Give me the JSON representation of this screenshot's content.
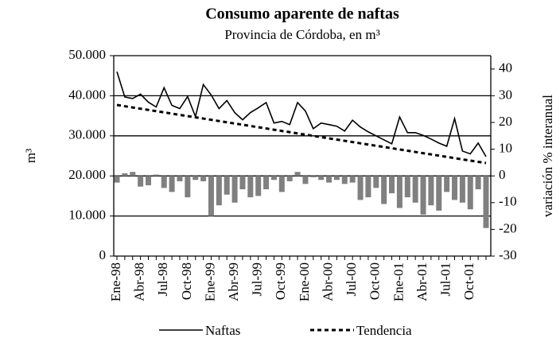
{
  "chart_data": {
    "type": "line-bar",
    "title": "Consumo aparente de naftas",
    "subtitle": "Provincia de Córdoba, en m³",
    "y_label": "m³",
    "y2_label": "variación % interanual",
    "categories": [
      "Ene-98",
      null,
      null,
      "Abr-98",
      null,
      null,
      "Jul-98",
      null,
      null,
      "Oct-98",
      null,
      null,
      "Ene-99",
      null,
      null,
      "Abr-99",
      null,
      null,
      "Jul-99",
      null,
      null,
      "Oct-99",
      null,
      null,
      "Ene-00",
      null,
      null,
      "Abr-00",
      null,
      null,
      "Jul-00",
      null,
      null,
      "Oct-00",
      null,
      null,
      "Ene-01",
      null,
      null,
      "Abr-01",
      null,
      null,
      "Jul-01",
      null,
      null,
      "Oct-01",
      null,
      null
    ],
    "series": [
      {
        "name": "Naftas",
        "kind": "line",
        "color": "#000000",
        "values": [
          46000,
          39700,
          39300,
          40400,
          38400,
          37200,
          42000,
          37600,
          36800,
          39800,
          34800,
          42800,
          40200,
          36800,
          38800,
          35800,
          34000,
          35800,
          37000,
          38300,
          33200,
          33600,
          32800,
          38300,
          36200,
          31800,
          33200,
          32800,
          32400,
          31200,
          33900,
          32200,
          31000,
          30000,
          29000,
          28000,
          34700,
          30800,
          30800,
          30100,
          29200,
          28200,
          27400,
          34300,
          26200,
          25500,
          28200,
          24800
        ]
      },
      {
        "name": "Tendencia",
        "kind": "dashed",
        "color": "#000000",
        "values": [
          37700,
          37390,
          37080,
          36770,
          36470,
          36160,
          35850,
          35540,
          35230,
          34920,
          34620,
          34310,
          34000,
          33690,
          33380,
          33070,
          32770,
          32460,
          32150,
          31840,
          31530,
          31220,
          30920,
          30610,
          30300,
          29990,
          29680,
          29370,
          29070,
          28760,
          28450,
          28140,
          27830,
          27520,
          27220,
          26910,
          26600,
          26290,
          25980,
          25670,
          25370,
          25060,
          24750,
          24440,
          24130,
          23820,
          23520,
          23210
        ]
      },
      {
        "kind": "bar",
        "axis": "y2",
        "color": "#808080",
        "values": [
          -2.5,
          1,
          1.5,
          -4,
          -3.5,
          0.5,
          -4.5,
          -6,
          -2,
          -8,
          -1.5,
          -2,
          -15,
          -11,
          -7,
          -10,
          -5,
          -8,
          -7.5,
          -5,
          -1.5,
          -6,
          -2,
          1.5,
          -3,
          -0.5,
          -1.5,
          -2.5,
          -1.5,
          -3,
          -2.5,
          -9,
          -8,
          -4.5,
          -10.5,
          -6.5,
          -12,
          -8,
          -10,
          -14.5,
          -11,
          -13,
          -6,
          -9,
          -10,
          -12.5,
          -5,
          -19.5
        ]
      }
    ],
    "ylim": [
      0,
      50000
    ],
    "yticks": [
      0,
      {
        "value": 10000,
        "label": "10.000"
      },
      {
        "value": 20000,
        "label": "20.000"
      },
      {
        "value": 30000,
        "label": "30.000"
      },
      {
        "value": 40000,
        "label": "40.000"
      },
      {
        "value": 50000,
        "label": "50.000"
      }
    ],
    "y2lim": [
      -30,
      45
    ],
    "y2ticks": [
      -30,
      -20,
      -10,
      0,
      10,
      20,
      30,
      40
    ],
    "grid": true
  }
}
